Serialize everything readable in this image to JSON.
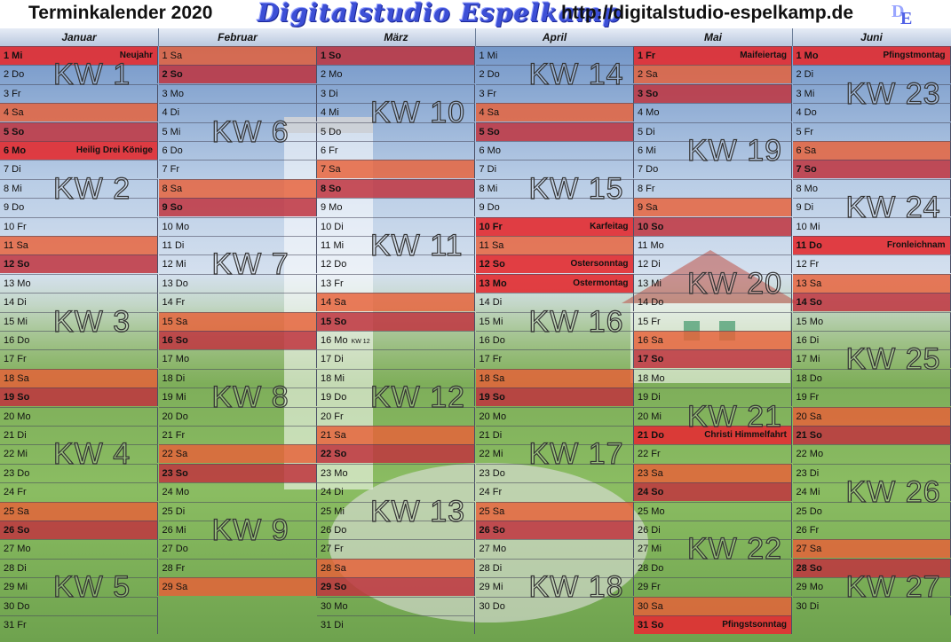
{
  "header": {
    "title": "Terminkalender 2020",
    "brand": "Digitalstudio Espelkamp",
    "url": "http://digitalstudio-espelkamp.de",
    "logo_letters": "DE"
  },
  "colors": {
    "saturday": "#e8643a",
    "sunday": "#c03c44",
    "holiday": "#e23a3e",
    "header_bar": "#b9c8de"
  },
  "months": [
    {
      "name": "Januar",
      "days": [
        {
          "l": "1 Mi",
          "t": "hol",
          "h": "Neujahr"
        },
        {
          "l": "2 Do"
        },
        {
          "l": "3 Fr"
        },
        {
          "l": "4 Sa",
          "t": "sat"
        },
        {
          "l": "5 So",
          "t": "sun"
        },
        {
          "l": "6 Mo",
          "t": "hol",
          "h": "Heilig Drei Könige"
        },
        {
          "l": "7 Di"
        },
        {
          "l": "8 Mi"
        },
        {
          "l": "9 Do"
        },
        {
          "l": "10 Fr"
        },
        {
          "l": "11 Sa",
          "t": "sat"
        },
        {
          "l": "12 So",
          "t": "sun"
        },
        {
          "l": "13 Mo"
        },
        {
          "l": "14 Di"
        },
        {
          "l": "15 Mi"
        },
        {
          "l": "16 Do"
        },
        {
          "l": "17 Fr"
        },
        {
          "l": "18 Sa",
          "t": "sat"
        },
        {
          "l": "19 So",
          "t": "sun"
        },
        {
          "l": "20 Mo"
        },
        {
          "l": "21 Di"
        },
        {
          "l": "22 Mi"
        },
        {
          "l": "23 Do"
        },
        {
          "l": "24 Fr"
        },
        {
          "l": "25 Sa",
          "t": "sat"
        },
        {
          "l": "26 So",
          "t": "sun"
        },
        {
          "l": "27 Mo"
        },
        {
          "l": "28 Di"
        },
        {
          "l": "29 Mi"
        },
        {
          "l": "30 Do"
        },
        {
          "l": "31 Fr"
        }
      ]
    },
    {
      "name": "Februar",
      "days": [
        {
          "l": "1 Sa",
          "t": "sat"
        },
        {
          "l": "2 So",
          "t": "sun"
        },
        {
          "l": "3 Mo"
        },
        {
          "l": "4 Di"
        },
        {
          "l": "5 Mi"
        },
        {
          "l": "6 Do"
        },
        {
          "l": "7 Fr"
        },
        {
          "l": "8 Sa",
          "t": "sat"
        },
        {
          "l": "9 So",
          "t": "sun"
        },
        {
          "l": "10 Mo"
        },
        {
          "l": "11 Di"
        },
        {
          "l": "12 Mi"
        },
        {
          "l": "13 Do"
        },
        {
          "l": "14 Fr"
        },
        {
          "l": "15 Sa",
          "t": "sat"
        },
        {
          "l": "16 So",
          "t": "sun"
        },
        {
          "l": "17 Mo"
        },
        {
          "l": "18 Di"
        },
        {
          "l": "19 Mi"
        },
        {
          "l": "20 Do"
        },
        {
          "l": "21 Fr"
        },
        {
          "l": "22 Sa",
          "t": "sat"
        },
        {
          "l": "23 So",
          "t": "sun"
        },
        {
          "l": "24 Mo"
        },
        {
          "l": "25 Di"
        },
        {
          "l": "26 Mi"
        },
        {
          "l": "27 Do"
        },
        {
          "l": "28 Fr"
        },
        {
          "l": "29 Sa",
          "t": "sat"
        }
      ]
    },
    {
      "name": "März",
      "days": [
        {
          "l": "1 So",
          "t": "sun"
        },
        {
          "l": "2 Mo"
        },
        {
          "l": "3 Di"
        },
        {
          "l": "4 Mi"
        },
        {
          "l": "5 Do"
        },
        {
          "l": "6 Fr"
        },
        {
          "l": "7 Sa",
          "t": "sat"
        },
        {
          "l": "8 So",
          "t": "sun"
        },
        {
          "l": "9 Mo"
        },
        {
          "l": "10 Di"
        },
        {
          "l": "11 Mi"
        },
        {
          "l": "12 Do"
        },
        {
          "l": "13 Fr"
        },
        {
          "l": "14 Sa",
          "t": "sat"
        },
        {
          "l": "15 So",
          "t": "sun"
        },
        {
          "l": "16 Mo",
          "m": "KW 12"
        },
        {
          "l": "17 Di"
        },
        {
          "l": "18 Mi"
        },
        {
          "l": "19 Do"
        },
        {
          "l": "20 Fr"
        },
        {
          "l": "21 Sa",
          "t": "sat"
        },
        {
          "l": "22 So",
          "t": "sun"
        },
        {
          "l": "23 Mo"
        },
        {
          "l": "24 Di"
        },
        {
          "l": "25 Mi"
        },
        {
          "l": "26 Do"
        },
        {
          "l": "27 Fr"
        },
        {
          "l": "28 Sa",
          "t": "sat"
        },
        {
          "l": "29 So",
          "t": "sun"
        },
        {
          "l": "30 Mo"
        },
        {
          "l": "31 Di"
        }
      ]
    },
    {
      "name": "April",
      "days": [
        {
          "l": "1 Mi"
        },
        {
          "l": "2 Do"
        },
        {
          "l": "3 Fr"
        },
        {
          "l": "4 Sa",
          "t": "sat"
        },
        {
          "l": "5 So",
          "t": "sun"
        },
        {
          "l": "6 Mo"
        },
        {
          "l": "7 Di"
        },
        {
          "l": "8 Mi"
        },
        {
          "l": "9 Do"
        },
        {
          "l": "10 Fr",
          "t": "hol",
          "h": "Karfeitag"
        },
        {
          "l": "11 Sa",
          "t": "sat"
        },
        {
          "l": "12 So",
          "t": "hol",
          "h": "Ostersonntag"
        },
        {
          "l": "13 Mo",
          "t": "hol",
          "h": "Ostermontag"
        },
        {
          "l": "14 Di"
        },
        {
          "l": "15 Mi"
        },
        {
          "l": "16 Do"
        },
        {
          "l": "17 Fr"
        },
        {
          "l": "18 Sa",
          "t": "sat"
        },
        {
          "l": "19 So",
          "t": "sun"
        },
        {
          "l": "20 Mo"
        },
        {
          "l": "21 Di"
        },
        {
          "l": "22 Mi"
        },
        {
          "l": "23 Do"
        },
        {
          "l": "24 Fr"
        },
        {
          "l": "25 Sa",
          "t": "sat"
        },
        {
          "l": "26 So",
          "t": "sun"
        },
        {
          "l": "27 Mo"
        },
        {
          "l": "28 Di"
        },
        {
          "l": "29 Mi"
        },
        {
          "l": "30 Do"
        }
      ]
    },
    {
      "name": "Mai",
      "days": [
        {
          "l": "1 Fr",
          "t": "hol",
          "h": "Maifeiertag"
        },
        {
          "l": "2 Sa",
          "t": "sat"
        },
        {
          "l": "3 So",
          "t": "sun"
        },
        {
          "l": "4 Mo"
        },
        {
          "l": "5 Di"
        },
        {
          "l": "6 Mi"
        },
        {
          "l": "7 Do"
        },
        {
          "l": "8 Fr"
        },
        {
          "l": "9 Sa",
          "t": "sat"
        },
        {
          "l": "10 So",
          "t": "sun"
        },
        {
          "l": "11 Mo"
        },
        {
          "l": "12 Di"
        },
        {
          "l": "13 Mi"
        },
        {
          "l": "14 Do"
        },
        {
          "l": "15 Fr"
        },
        {
          "l": "16 Sa",
          "t": "sat"
        },
        {
          "l": "17 So",
          "t": "sun"
        },
        {
          "l": "18 Mo"
        },
        {
          "l": "19 Di"
        },
        {
          "l": "20 Mi"
        },
        {
          "l": "21 Do",
          "t": "hol",
          "h": "Christi Himmelfahrt"
        },
        {
          "l": "22 Fr"
        },
        {
          "l": "23 Sa",
          "t": "sat"
        },
        {
          "l": "24 So",
          "t": "sun"
        },
        {
          "l": "25 Mo"
        },
        {
          "l": "26 Di"
        },
        {
          "l": "27 Mi"
        },
        {
          "l": "28 Do"
        },
        {
          "l": "29 Fr"
        },
        {
          "l": "30 Sa",
          "t": "sat"
        },
        {
          "l": "31 So",
          "t": "hol",
          "h": "Pfingstsonntag"
        }
      ]
    },
    {
      "name": "Juni",
      "days": [
        {
          "l": "1 Mo",
          "t": "hol",
          "h": "Pfingstmontag"
        },
        {
          "l": "2 Di"
        },
        {
          "l": "3 Mi"
        },
        {
          "l": "4 Do"
        },
        {
          "l": "5 Fr"
        },
        {
          "l": "6 Sa",
          "t": "sat"
        },
        {
          "l": "7 So",
          "t": "sun"
        },
        {
          "l": "8 Mo"
        },
        {
          "l": "9 Di"
        },
        {
          "l": "10 Mi"
        },
        {
          "l": "11 Do",
          "t": "hol",
          "h": "Fronleichnam"
        },
        {
          "l": "12 Fr"
        },
        {
          "l": "13 Sa",
          "t": "sat"
        },
        {
          "l": "14 So",
          "t": "sun"
        },
        {
          "l": "15 Mo"
        },
        {
          "l": "16 Di"
        },
        {
          "l": "17 Mi"
        },
        {
          "l": "18 Do"
        },
        {
          "l": "19 Fr"
        },
        {
          "l": "20 Sa",
          "t": "sat"
        },
        {
          "l": "21 So",
          "t": "sun"
        },
        {
          "l": "22 Mo"
        },
        {
          "l": "23 Di"
        },
        {
          "l": "24 Mi"
        },
        {
          "l": "25 Do"
        },
        {
          "l": "26 Fr"
        },
        {
          "l": "27 Sa",
          "t": "sat"
        },
        {
          "l": "28 So",
          "t": "sun"
        },
        {
          "l": "29 Mo"
        },
        {
          "l": "30 Di"
        }
      ]
    }
  ],
  "week_labels": [
    {
      "text": "KW 1",
      "month": 0,
      "day": 2
    },
    {
      "text": "KW 2",
      "month": 0,
      "day": 8
    },
    {
      "text": "KW 3",
      "month": 0,
      "day": 15
    },
    {
      "text": "KW 4",
      "month": 0,
      "day": 22
    },
    {
      "text": "KW 5",
      "month": 0,
      "day": 29
    },
    {
      "text": "KW 6",
      "month": 1,
      "day": 5
    },
    {
      "text": "KW 7",
      "month": 1,
      "day": 12
    },
    {
      "text": "KW 8",
      "month": 1,
      "day": 19
    },
    {
      "text": "KW 9",
      "month": 1,
      "day": 26
    },
    {
      "text": "KW 10",
      "month": 2,
      "day": 4
    },
    {
      "text": "KW 11",
      "month": 2,
      "day": 11
    },
    {
      "text": "KW 12",
      "month": 2,
      "day": 19
    },
    {
      "text": "KW 13",
      "month": 2,
      "day": 25
    },
    {
      "text": "KW 14",
      "month": 3,
      "day": 2
    },
    {
      "text": "KW 15",
      "month": 3,
      "day": 8
    },
    {
      "text": "KW 16",
      "month": 3,
      "day": 15
    },
    {
      "text": "KW 17",
      "month": 3,
      "day": 22
    },
    {
      "text": "KW 18",
      "month": 3,
      "day": 29
    },
    {
      "text": "KW 19",
      "month": 4,
      "day": 6
    },
    {
      "text": "KW 20",
      "month": 4,
      "day": 13
    },
    {
      "text": "KW 21",
      "month": 4,
      "day": 20
    },
    {
      "text": "KW 22",
      "month": 4,
      "day": 27
    },
    {
      "text": "KW 23",
      "month": 5,
      "day": 3
    },
    {
      "text": "KW 24",
      "month": 5,
      "day": 9
    },
    {
      "text": "KW 25",
      "month": 5,
      "day": 17
    },
    {
      "text": "KW 26",
      "month": 5,
      "day": 24
    },
    {
      "text": "KW 27",
      "month": 5,
      "day": 29
    }
  ]
}
